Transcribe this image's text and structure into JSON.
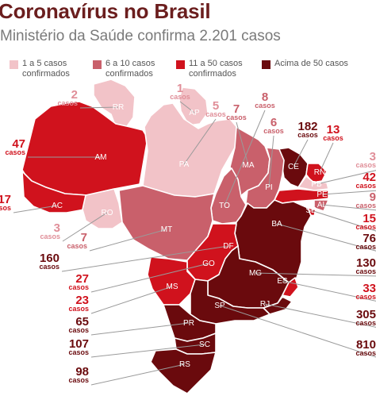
{
  "title": "Coronavírus no Brasil",
  "subtitle": "Ministério da Saúde confirma 2.201 casos",
  "unit_label": "casos",
  "legend": [
    {
      "label": "1 a 5 casos\nconfirmados",
      "color": "#f2c3c8",
      "text_color": "#e08e98"
    },
    {
      "label": "6 a 10 casos\nconfirmados",
      "color": "#c9606b",
      "text_color": "#c9606b"
    },
    {
      "label": "11 a 50 casos\nconfirmados",
      "color": "#d0121d",
      "text_color": "#d0121d"
    },
    {
      "label": "Acima de 50 casos",
      "color": "#6a0a0d",
      "text_color": "#6a0a0d"
    }
  ],
  "states": [
    {
      "abbr": "RR",
      "cases": "2",
      "tier": 0
    },
    {
      "abbr": "AP",
      "cases": "1",
      "tier": 0
    },
    {
      "abbr": "AM",
      "cases": "47",
      "tier": 2
    },
    {
      "abbr": "PA",
      "cases": "5",
      "tier": 0
    },
    {
      "abbr": "MA",
      "cases": "7",
      "tier": 1
    },
    {
      "abbr": "CE",
      "cases": "182",
      "tier": 3
    },
    {
      "abbr": "RN",
      "cases": "13",
      "tier": 2
    },
    {
      "abbr": "PB",
      "cases": "3",
      "tier": 0
    },
    {
      "abbr": "PE",
      "cases": "42",
      "tier": 2
    },
    {
      "abbr": "AL",
      "cases": "9",
      "tier": 1
    },
    {
      "abbr": "SE",
      "cases": "15",
      "tier": 2
    },
    {
      "abbr": "PI",
      "cases": "6",
      "tier": 1
    },
    {
      "abbr": "TO",
      "cases": "8",
      "tier": 1
    },
    {
      "abbr": "BA",
      "cases": "76",
      "tier": 3
    },
    {
      "abbr": "AC",
      "cases": "17",
      "tier": 2
    },
    {
      "abbr": "RO",
      "cases": "3",
      "tier": 0
    },
    {
      "abbr": "MT",
      "cases": "7",
      "tier": 1
    },
    {
      "abbr": "DF",
      "cases": "160",
      "tier": 3
    },
    {
      "abbr": "GO",
      "cases": "27",
      "tier": 2
    },
    {
      "abbr": "MG",
      "cases": "130",
      "tier": 3
    },
    {
      "abbr": "ES",
      "cases": "33",
      "tier": 2
    },
    {
      "abbr": "MS",
      "cases": "23",
      "tier": 2
    },
    {
      "abbr": "RJ",
      "cases": "305",
      "tier": 3
    },
    {
      "abbr": "SP",
      "cases": "810",
      "tier": 3
    },
    {
      "abbr": "PR",
      "cases": "65",
      "tier": 3
    },
    {
      "abbr": "SC",
      "cases": "107",
      "tier": 3
    },
    {
      "abbr": "RS",
      "cases": "98",
      "tier": 3
    }
  ]
}
